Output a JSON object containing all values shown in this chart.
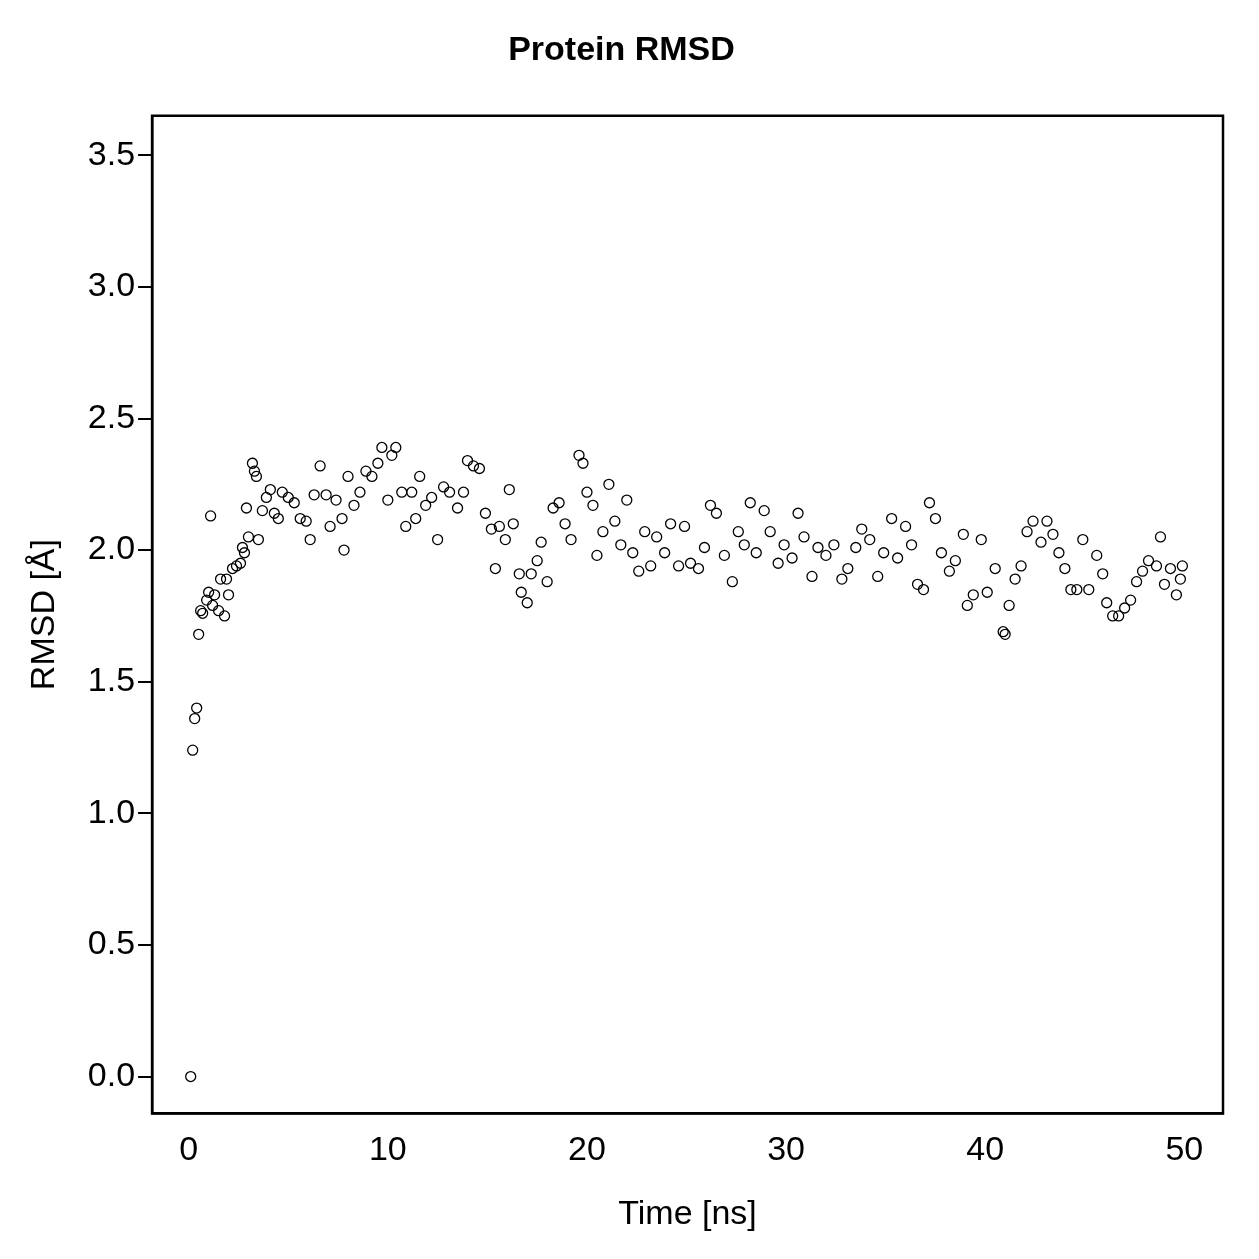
{
  "chart_data": {
    "type": "scatter",
    "title": "Protein RMSD",
    "xlabel": "Time [ns]",
    "ylabel": "RMSD [Å]",
    "xlim": [
      -1.84,
      51.94
    ],
    "xticks": [
      0,
      10,
      20,
      30,
      40,
      50
    ],
    "ylim": [
      -0.14,
      3.65
    ],
    "yticks": [
      {
        "value": 0,
        "label": "0.0"
      },
      {
        "value": 0.5,
        "label": "0.5"
      },
      {
        "value": 1,
        "label": "1.0"
      },
      {
        "value": 1.5,
        "label": "1.5"
      },
      {
        "value": 2,
        "label": "2.0"
      },
      {
        "value": 2.5,
        "label": "2.5"
      },
      {
        "value": 3,
        "label": "3.0"
      },
      {
        "value": 3.5,
        "label": "3.5"
      }
    ],
    "grid": false,
    "legend": false,
    "marker": "circle",
    "series": [
      {
        "color": "#000000",
        "x": [
          0.1,
          0.2,
          0.3,
          0.4,
          0.5,
          0.6,
          0.7,
          0.9,
          1.0,
          1.1,
          1.2,
          1.3,
          1.5,
          1.6,
          1.8,
          1.9,
          2.0,
          2.2,
          2.4,
          2.6,
          2.7,
          2.8,
          2.9,
          3.0,
          3.2,
          3.3,
          3.4,
          3.5,
          3.7,
          3.9,
          4.1,
          4.3,
          4.5,
          4.7,
          5.0,
          5.3,
          5.6,
          5.9,
          6.1,
          6.3,
          6.6,
          6.9,
          7.1,
          7.4,
          7.7,
          7.8,
          8.0,
          8.3,
          8.6,
          8.9,
          9.2,
          9.5,
          9.7,
          10.0,
          10.2,
          10.4,
          10.7,
          10.9,
          11.2,
          11.4,
          11.6,
          11.9,
          12.2,
          12.5,
          12.8,
          13.1,
          13.5,
          13.8,
          14.0,
          14.3,
          14.6,
          14.9,
          15.2,
          15.4,
          15.6,
          15.9,
          16.1,
          16.3,
          16.6,
          16.7,
          17.0,
          17.2,
          17.5,
          17.7,
          18.0,
          18.3,
          18.6,
          18.9,
          19.2,
          19.6,
          19.8,
          20.0,
          20.3,
          20.5,
          20.8,
          21.1,
          21.4,
          21.7,
          22.0,
          22.3,
          22.6,
          22.9,
          23.2,
          23.5,
          23.9,
          24.2,
          24.6,
          24.9,
          25.2,
          25.6,
          25.9,
          26.2,
          26.5,
          26.9,
          27.3,
          27.6,
          27.9,
          28.2,
          28.5,
          28.9,
          29.2,
          29.6,
          29.9,
          30.3,
          30.6,
          30.9,
          31.3,
          31.6,
          32.0,
          32.4,
          32.8,
          33.1,
          33.5,
          33.8,
          34.2,
          34.6,
          34.9,
          35.3,
          35.6,
          36.0,
          36.3,
          36.6,
          36.9,
          37.2,
          37.5,
          37.8,
          38.2,
          38.5,
          38.9,
          39.1,
          39.4,
          39.8,
          40.1,
          40.5,
          40.9,
          41.0,
          41.2,
          41.5,
          41.8,
          42.1,
          42.4,
          42.8,
          43.1,
          43.4,
          43.7,
          44.0,
          44.3,
          44.6,
          44.9,
          45.2,
          45.6,
          45.9,
          46.1,
          46.4,
          46.7,
          47.0,
          47.3,
          47.6,
          47.9,
          48.2,
          48.6,
          48.8,
          49.0,
          49.3,
          49.6,
          49.8,
          49.9
        ],
        "values": [
          0.0,
          1.24,
          1.36,
          1.4,
          1.68,
          1.77,
          1.76,
          1.81,
          1.84,
          2.13,
          1.79,
          1.83,
          1.77,
          1.89,
          1.75,
          1.89,
          1.83,
          1.93,
          1.94,
          1.95,
          2.01,
          1.99,
          2.16,
          2.05,
          2.33,
          2.3,
          2.28,
          2.04,
          2.15,
          2.2,
          2.23,
          2.14,
          2.12,
          2.22,
          2.2,
          2.18,
          2.12,
          2.11,
          2.04,
          2.21,
          2.32,
          2.21,
          2.09,
          2.19,
          2.12,
          2.0,
          2.28,
          2.17,
          2.22,
          2.3,
          2.28,
          2.33,
          2.39,
          2.19,
          2.36,
          2.39,
          2.22,
          2.09,
          2.22,
          2.12,
          2.28,
          2.17,
          2.2,
          2.04,
          2.24,
          2.22,
          2.16,
          2.22,
          2.34,
          2.32,
          2.31,
          2.14,
          2.08,
          1.93,
          2.09,
          2.04,
          2.23,
          2.1,
          1.91,
          1.84,
          1.8,
          1.91,
          1.96,
          2.03,
          1.88,
          2.16,
          2.18,
          2.1,
          2.04,
          2.36,
          2.33,
          2.22,
          2.17,
          1.98,
          2.07,
          2.25,
          2.11,
          2.02,
          2.19,
          1.99,
          1.92,
          2.07,
          1.94,
          2.05,
          1.99,
          2.1,
          1.94,
          2.09,
          1.95,
          1.93,
          2.01,
          2.17,
          2.14,
          1.98,
          1.88,
          2.07,
          2.02,
          2.18,
          1.99,
          2.15,
          2.07,
          1.95,
          2.02,
          1.97,
          2.14,
          2.05,
          1.9,
          2.01,
          1.98,
          2.02,
          1.89,
          1.93,
          2.01,
          2.08,
          2.04,
          1.9,
          1.99,
          2.12,
          1.97,
          2.09,
          2.02,
          1.87,
          1.85,
          2.18,
          2.12,
          1.99,
          1.92,
          1.96,
          2.06,
          1.79,
          1.83,
          2.04,
          1.84,
          1.93,
          1.69,
          1.68,
          1.79,
          1.89,
          1.94,
          2.07,
          2.11,
          2.03,
          2.11,
          2.06,
          1.99,
          1.93,
          1.85,
          1.85,
          2.04,
          1.85,
          1.98,
          1.91,
          1.8,
          1.75,
          1.75,
          1.78,
          1.81,
          1.88,
          1.92,
          1.96,
          1.94,
          2.05,
          1.87,
          1.93,
          1.83,
          1.89,
          1.94
        ]
      }
    ]
  }
}
